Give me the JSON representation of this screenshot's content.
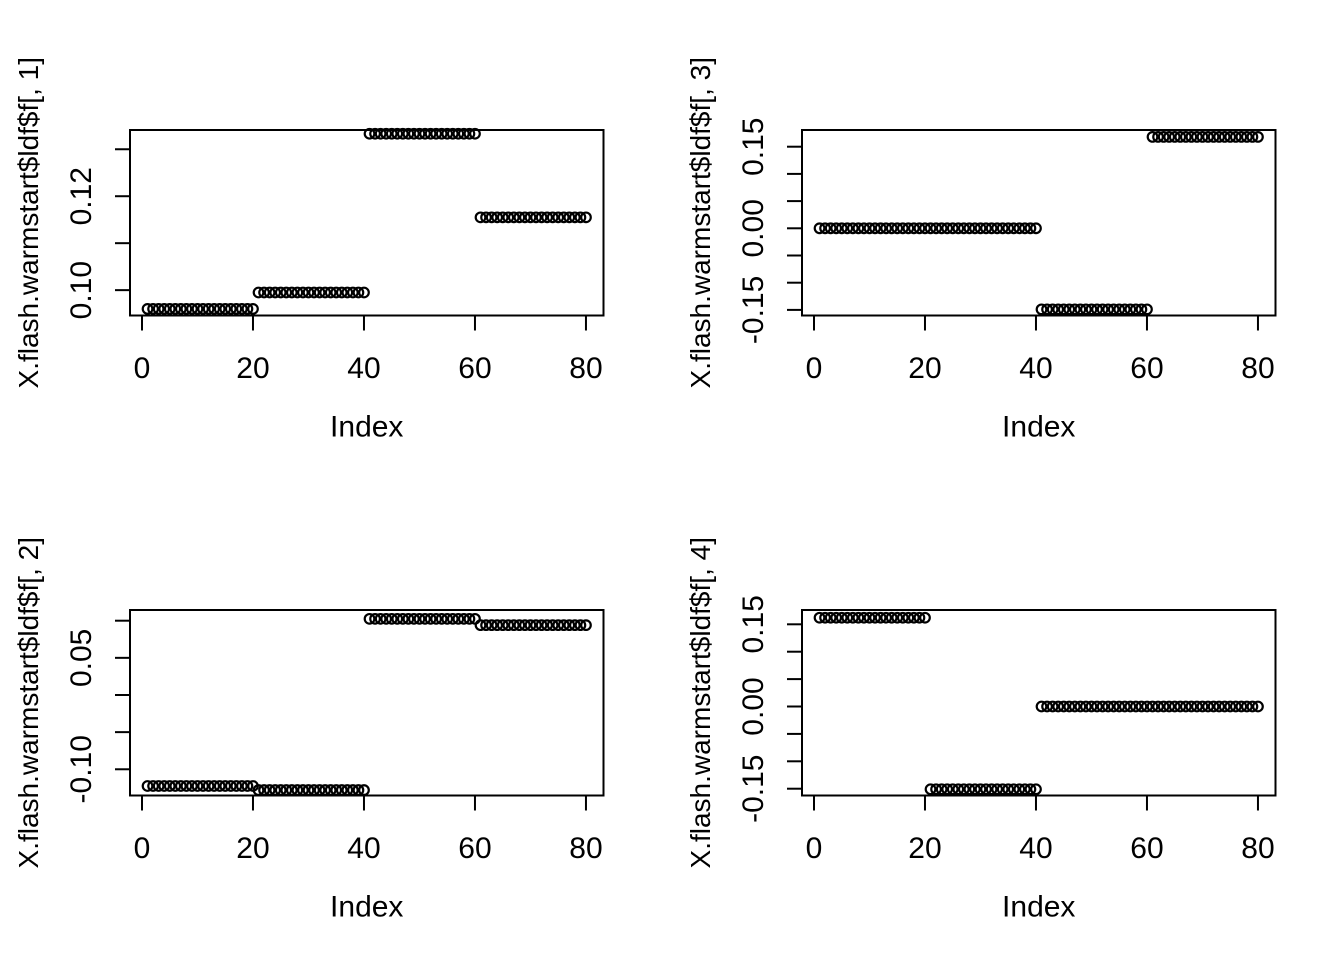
{
  "page": {
    "background_color": "#ffffff",
    "foreground_color": "#000000",
    "description": "R base-graphics 2x2 panel of scatter plots of flash warmstart loading factors"
  },
  "chart_data": {
    "type": "scatter",
    "marker": "open-circle",
    "grid": "off",
    "legend": "none",
    "points_per_plot": 80,
    "x_ticks": [
      {
        "value": 0,
        "label": "0"
      },
      {
        "value": 20,
        "label": "20"
      },
      {
        "value": 40,
        "label": "40"
      },
      {
        "value": 60,
        "label": "60"
      },
      {
        "value": 80,
        "label": "80"
      }
    ],
    "x_range": [
      -2.16,
      83.16
    ],
    "plots": [
      {
        "id": "ldf-f-1",
        "grid_position": "top-left",
        "ylab": "X.flash.warmstart$ldf$f[, 1]",
        "xlab": "Index",
        "y_range": [
          0.0946,
          0.1341
        ],
        "y_ticks": [
          {
            "value": 0.1,
            "label": "0.10"
          },
          {
            "value": 0.11,
            "label": ""
          },
          {
            "value": 0.12,
            "label": "0.12"
          },
          {
            "value": 0.13,
            "label": ""
          }
        ],
        "series_groups": [
          {
            "index_from": 1,
            "index_to": 20,
            "value": 0.096
          },
          {
            "index_from": 21,
            "index_to": 40,
            "value": 0.0995
          },
          {
            "index_from": 41,
            "index_to": 60,
            "value": 0.1333
          },
          {
            "index_from": 61,
            "index_to": 80,
            "value": 0.1155
          }
        ]
      },
      {
        "id": "ldf-f-3",
        "grid_position": "top-right",
        "ylab": "X.flash.warmstart$ldf$f[, 3]",
        "xlab": "Index",
        "y_range": [
          -0.1603,
          0.1807
        ],
        "y_ticks": [
          {
            "value": -0.15,
            "label": "-0.15"
          },
          {
            "value": -0.1,
            "label": ""
          },
          {
            "value": -0.05,
            "label": ""
          },
          {
            "value": 0.0,
            "label": "0.00"
          },
          {
            "value": 0.05,
            "label": ""
          },
          {
            "value": 0.1,
            "label": ""
          },
          {
            "value": 0.15,
            "label": "0.15"
          }
        ],
        "series_groups": [
          {
            "index_from": 1,
            "index_to": 40,
            "value": 0.0
          },
          {
            "index_from": 41,
            "index_to": 60,
            "value": -0.149
          },
          {
            "index_from": 61,
            "index_to": 80,
            "value": 0.168
          }
        ]
      },
      {
        "id": "ldf-f-2",
        "grid_position": "bottom-left",
        "ylab": "X.flash.warmstart$ldf$f[, 2]",
        "xlab": "Index",
        "y_range": [
          -0.1353,
          0.1144
        ],
        "y_ticks": [
          {
            "value": -0.1,
            "label": "-0.10"
          },
          {
            "value": -0.05,
            "label": ""
          },
          {
            "value": 0.0,
            "label": ""
          },
          {
            "value": 0.05,
            "label": "0.05"
          },
          {
            "value": 0.1,
            "label": ""
          }
        ],
        "series_groups": [
          {
            "index_from": 1,
            "index_to": 20,
            "value": -0.1225
          },
          {
            "index_from": 21,
            "index_to": 40,
            "value": -0.128
          },
          {
            "index_from": 41,
            "index_to": 60,
            "value": 0.1025
          },
          {
            "index_from": 61,
            "index_to": 80,
            "value": 0.094
          }
        ]
      },
      {
        "id": "ldf-f-4",
        "grid_position": "bottom-right",
        "ylab": "X.flash.warmstart$ldf$f[, 4]",
        "xlab": "Index",
        "y_range": [
          -0.1624,
          0.1761
        ],
        "y_ticks": [
          {
            "value": -0.15,
            "label": "-0.15"
          },
          {
            "value": -0.1,
            "label": ""
          },
          {
            "value": -0.05,
            "label": ""
          },
          {
            "value": 0.0,
            "label": "0.00"
          },
          {
            "value": 0.05,
            "label": ""
          },
          {
            "value": 0.1,
            "label": ""
          },
          {
            "value": 0.15,
            "label": "0.15"
          }
        ],
        "series_groups": [
          {
            "index_from": 1,
            "index_to": 20,
            "value": 0.162
          },
          {
            "index_from": 21,
            "index_to": 40,
            "value": -0.151
          },
          {
            "index_from": 41,
            "index_to": 80,
            "value": 0.0
          }
        ]
      }
    ]
  }
}
